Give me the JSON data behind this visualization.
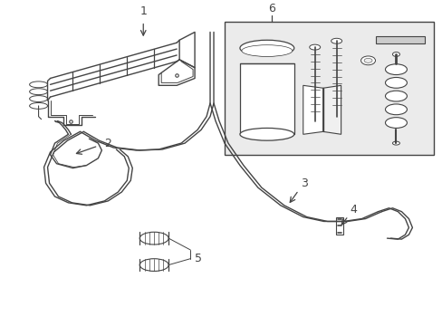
{
  "bg_color": "#ffffff",
  "lc": "#444444",
  "lw": 0.9,
  "fig_w": 4.89,
  "fig_h": 3.6,
  "dpi": 100
}
